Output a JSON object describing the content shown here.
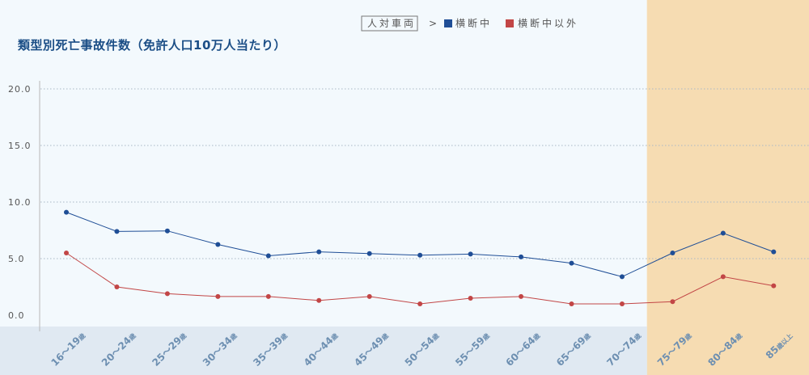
{
  "chart_data": {
    "type": "line",
    "title": "類型別死亡事故件数（免許人口10万人当たり）",
    "categories": [
      "16～19歳",
      "20～24歳",
      "25～29歳",
      "30～34歳",
      "35～39歳",
      "40～44歳",
      "45～49歳",
      "50～54歳",
      "55～59歳",
      "60～64歳",
      "65～69歳",
      "70～74歳",
      "75～79歳",
      "80～84歳",
      "85歳以上"
    ],
    "categories_display": [
      {
        "num": "16～19",
        "suffix": "歳"
      },
      {
        "num": "20～24",
        "suffix": "歳"
      },
      {
        "num": "25～29",
        "suffix": "歳"
      },
      {
        "num": "30～34",
        "suffix": "歳"
      },
      {
        "num": "35～39",
        "suffix": "歳"
      },
      {
        "num": "40～44",
        "suffix": "歳"
      },
      {
        "num": "45～49",
        "suffix": "歳"
      },
      {
        "num": "50～54",
        "suffix": "歳"
      },
      {
        "num": "55～59",
        "suffix": "歳"
      },
      {
        "num": "60～64",
        "suffix": "歳"
      },
      {
        "num": "65～69",
        "suffix": "歳"
      },
      {
        "num": "70～74",
        "suffix": "歳"
      },
      {
        "num": "75～79",
        "suffix": "歳"
      },
      {
        "num": "80～84",
        "suffix": "歳"
      },
      {
        "num": "85",
        "suffix": "歳以上"
      }
    ],
    "series": [
      {
        "name": "横断中",
        "color": "#1f4e96",
        "values": [
          9.1,
          7.4,
          7.45,
          6.25,
          5.25,
          5.6,
          5.45,
          5.3,
          5.4,
          5.15,
          4.6,
          3.4,
          5.5,
          7.25,
          5.6
        ]
      },
      {
        "name": "横断中以外",
        "color": "#c24646",
        "values": [
          5.5,
          2.5,
          1.9,
          1.65,
          1.65,
          1.3,
          1.65,
          1.0,
          1.5,
          1.65,
          1.0,
          1.0,
          1.2,
          3.4,
          2.6
        ]
      }
    ],
    "yticks": [
      "0.0",
      "5.0",
      "10.0",
      "15.0",
      "20.0"
    ],
    "ylim": [
      0,
      20
    ],
    "grid": true,
    "legend": {
      "category_label": "人対車両",
      "separator": ">",
      "placement": "top-right"
    },
    "highlight": {
      "from": "75～79歳",
      "to": "85歳以上",
      "color": "#f6dcb2"
    }
  },
  "colors": {
    "background": "#f3f9fd",
    "axis_band": "#e0e9f2",
    "title": "#1b4e86",
    "tick_x": "#6d8fb1"
  }
}
